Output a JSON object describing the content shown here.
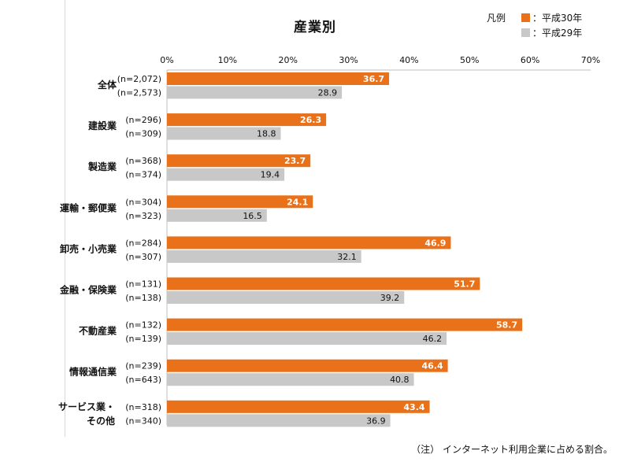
{
  "chart_data": {
    "type": "bar",
    "orientation": "horizontal",
    "title": "産業別",
    "xlim": [
      0,
      70
    ],
    "x_ticks": [
      "0%",
      "10%",
      "20%",
      "30%",
      "40%",
      "50%",
      "60%",
      "70%"
    ],
    "x_tick_values": [
      0,
      10,
      20,
      30,
      40,
      50,
      60,
      70
    ],
    "legend_title": "凡例",
    "legend_position": "top-right",
    "categories": [
      [
        "全体"
      ],
      [
        "建設業"
      ],
      [
        "製造業"
      ],
      [
        "運輸・郵便業"
      ],
      [
        "卸売・小売業"
      ],
      [
        "金融・保険業"
      ],
      [
        "不動産業"
      ],
      [
        "情報通信業"
      ],
      [
        "サービス業・",
        "その他"
      ]
    ],
    "series": [
      {
        "name": "：平成30年",
        "color": "#e8711a",
        "values": [
          36.7,
          26.3,
          23.7,
          24.1,
          46.9,
          51.7,
          58.7,
          46.4,
          43.4
        ],
        "value_labels": [
          "36.7",
          "26.3",
          "23.7",
          "24.1",
          "46.9",
          "51.7",
          "58.7",
          "46.4",
          "43.4"
        ],
        "n": [
          "(n=2,072)",
          "(n=296)",
          "(n=368)",
          "(n=304)",
          "(n=284)",
          "(n=131)",
          "(n=132)",
          "(n=239)",
          "(n=318)"
        ]
      },
      {
        "name": "：平成29年",
        "color": "#c8c8c8",
        "values": [
          28.9,
          18.8,
          19.4,
          16.5,
          32.1,
          39.2,
          46.2,
          40.8,
          36.9
        ],
        "value_labels": [
          "28.9",
          "18.8",
          "19.4",
          "16.5",
          "32.1",
          "39.2",
          "46.2",
          "40.8",
          "36.9"
        ],
        "n": [
          "(n=2,573)",
          "(n=309)",
          "(n=374)",
          "(n=323)",
          "(n=307)",
          "(n=138)",
          "(n=139)",
          "(n=643)",
          "(n=340)"
        ]
      }
    ]
  },
  "note": "（注） インターネット利用企業に占める割合。"
}
